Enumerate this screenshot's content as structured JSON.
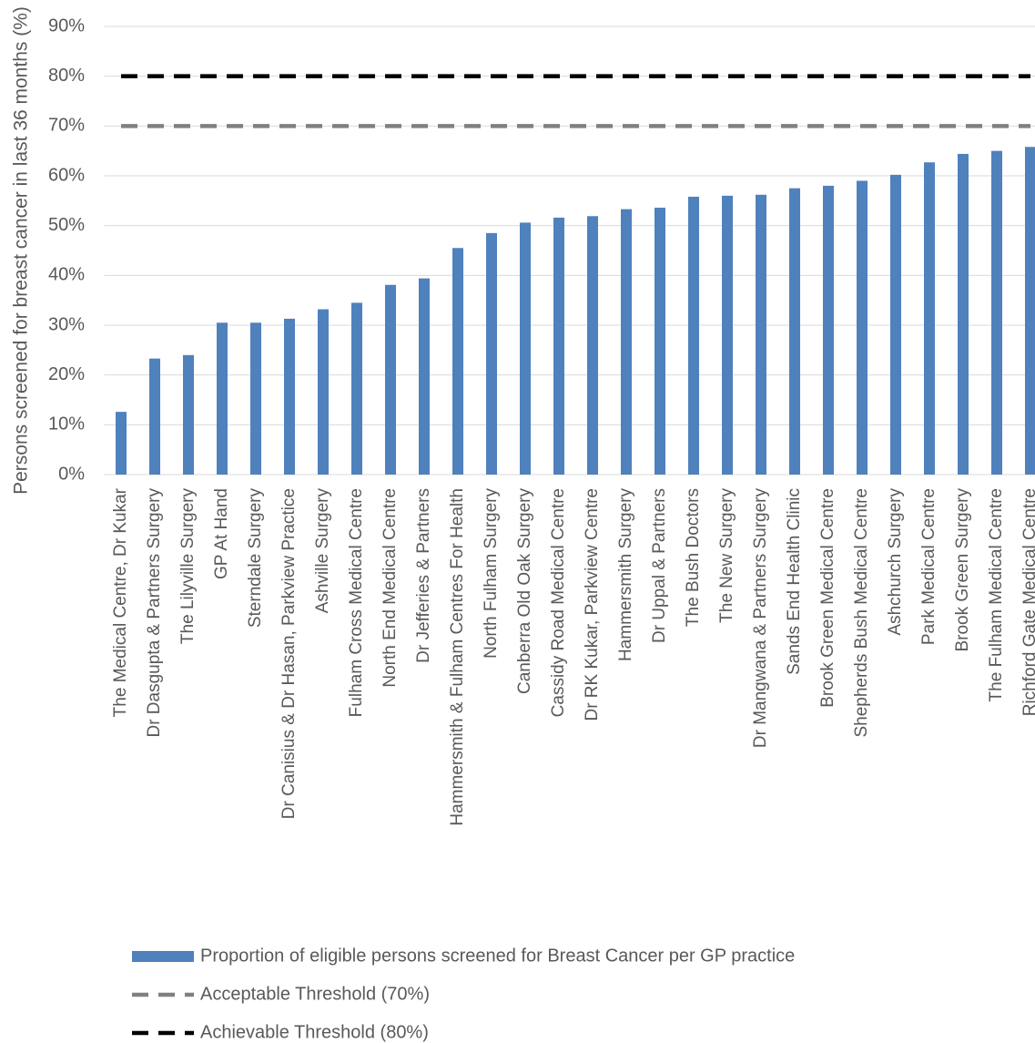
{
  "chart_data": {
    "type": "bar",
    "y_label": "Persons screened for breast cancer in last 36 months (%)",
    "categories": [
      "The Medical Centre, Dr Kukar",
      "Dr Dasgupta & Partners Surgery",
      "The Lilyville Surgery",
      "GP At Hand",
      "Sterndale Surgery",
      "Dr Canisius & Dr Hasan, Parkview Practice",
      "Ashville Surgery",
      "Fulham Cross Medical Centre",
      "North End Medical Centre",
      "Dr Jefferies & Partners",
      "Hammersmith & Fulham Centres For Health",
      "North Fulham Surgery",
      "Canberra Old Oak Surgery",
      "Cassidy Road Medical Centre",
      "Dr RK Kukar, Parkview Centre",
      "Hammersmith Surgery",
      "Dr Uppal & Partners",
      "The Bush Doctors",
      "The New Surgery",
      "Dr Mangwana & Partners Surgery",
      "Sands End Health Clinic",
      "Brook Green Medical Centre",
      "Shepherds Bush Medical Centre",
      "Ashchurch Surgery",
      "Park Medical Centre",
      "Brook Green Surgery",
      "The Fulham Medical Centre",
      "Richford Gate Medical Centre"
    ],
    "series": [
      {
        "name": "Proportion of eligible persons screened for Breast Cancer per GP practice",
        "type": "bar",
        "color": "#4f81bd",
        "values": [
          12.6,
          23.3,
          24.0,
          30.5,
          30.5,
          31.3,
          33.2,
          34.5,
          38.1,
          39.4,
          45.5,
          48.5,
          50.6,
          51.6,
          51.9,
          53.3,
          53.6,
          55.8,
          56.0,
          56.2,
          57.5,
          58.0,
          59.0,
          60.2,
          62.7,
          64.4,
          65.0,
          65.8
        ]
      },
      {
        "name": "Acceptable Threshold (70%)",
        "type": "line",
        "color": "#808080",
        "values": [
          70,
          70,
          70,
          70,
          70,
          70,
          70,
          70,
          70,
          70,
          70,
          70,
          70,
          70,
          70,
          70,
          70,
          70,
          70,
          70,
          70,
          70,
          70,
          70,
          70,
          70,
          70,
          70
        ]
      },
      {
        "name": "Achievable Threshold (80%)",
        "type": "line",
        "color": "#000000",
        "values": [
          80,
          80,
          80,
          80,
          80,
          80,
          80,
          80,
          80,
          80,
          80,
          80,
          80,
          80,
          80,
          80,
          80,
          80,
          80,
          80,
          80,
          80,
          80,
          80,
          80,
          80,
          80,
          80
        ]
      }
    ],
    "ylim": [
      0,
      90
    ],
    "yticks": [
      {
        "value": 0,
        "label": "0%"
      },
      {
        "value": 10,
        "label": "10%"
      },
      {
        "value": 20,
        "label": "20%"
      },
      {
        "value": 30,
        "label": "30%"
      },
      {
        "value": 40,
        "label": "40%"
      },
      {
        "value": 50,
        "label": "50%"
      },
      {
        "value": 60,
        "label": "60%"
      },
      {
        "value": 70,
        "label": "70%"
      },
      {
        "value": 80,
        "label": "80%"
      },
      {
        "value": 90,
        "label": "90%"
      }
    ],
    "grid": true,
    "legend": "bottom"
  }
}
